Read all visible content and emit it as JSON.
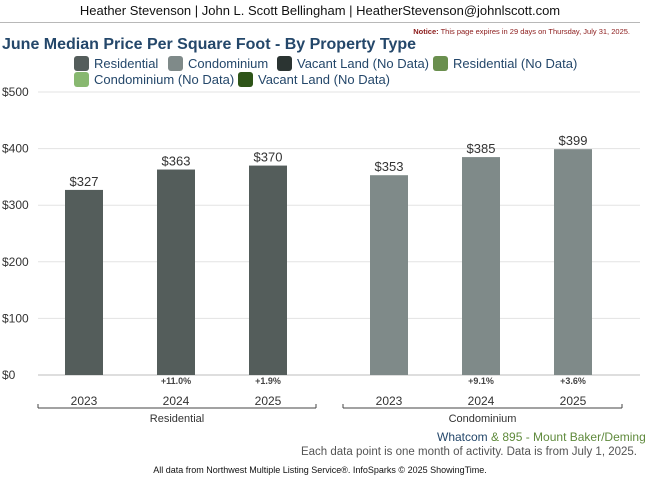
{
  "header": {
    "agent_line": "Heather Stevenson | John L. Scott Bellingham | HeatherStevenson@johnlscott.com",
    "notice_label": "Notice:",
    "notice_text": "This page expires in 29 days on Thursday, July 31, 2025."
  },
  "legend": [
    {
      "label": "Residential",
      "color": "#545d5b"
    },
    {
      "label": "Condominium",
      "color": "#7f8a89"
    },
    {
      "label": "Vacant Land (No Data)",
      "color": "#2b3432"
    },
    {
      "label": "Residential (No Data)",
      "color": "#6a8f4e"
    },
    {
      "label": "Condominium (No Data)",
      "color": "#88b870"
    },
    {
      "label": "Vacant Land (No Data)",
      "color": "#2e5418"
    }
  ],
  "chart_data": {
    "type": "bar",
    "title": "June Median Price Per Square Foot - By Property Type",
    "ylim": [
      0,
      500
    ],
    "yticks": [
      "$0",
      "$100",
      "$200",
      "$300",
      "$400",
      "$500"
    ],
    "ytick_values": [
      0,
      100,
      200,
      300,
      400,
      500
    ],
    "grid": true,
    "groups": [
      {
        "name": "Residential",
        "color": "#545d5b",
        "categories": [
          "2023",
          "2024",
          "2025"
        ],
        "values": [
          327,
          363,
          370
        ],
        "value_labels": [
          "$327",
          "$363",
          "$370"
        ],
        "changes": [
          "",
          "+11.0%",
          "+1.9%"
        ]
      },
      {
        "name": "Condominium",
        "color": "#7f8a89",
        "categories": [
          "2023",
          "2024",
          "2025"
        ],
        "values": [
          353,
          385,
          399
        ],
        "value_labels": [
          "$353",
          "$385",
          "$399"
        ],
        "changes": [
          "",
          "+9.1%",
          "+3.6%"
        ]
      }
    ]
  },
  "footer": {
    "geo_part1": "Whatcom",
    "geo_part2": " & 895 - Mount Baker/Deming",
    "data_note": "Each data point is one month of activity. Data is from July 1, 2025.",
    "source": "All data from Northwest Multiple Listing Service®. InfoSparks © 2025 ShowingTime."
  }
}
